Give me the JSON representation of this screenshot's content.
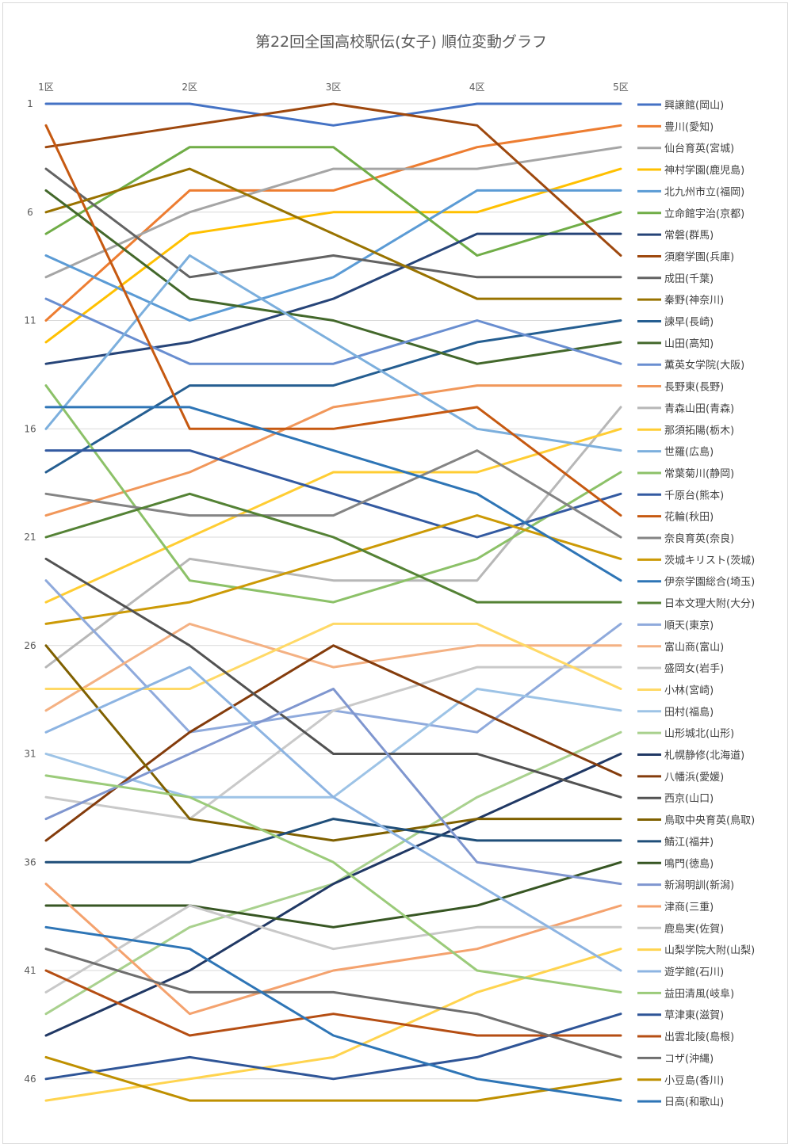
{
  "chart_data": {
    "type": "line",
    "title": "第22回全国高校駅伝(女子) 順位変動グラフ",
    "categories": [
      "1区",
      "2区",
      "3区",
      "4区",
      "5区"
    ],
    "y_ticks": [
      "1",
      "6",
      "11",
      "16",
      "21",
      "26",
      "31",
      "36",
      "41",
      "46"
    ],
    "ylim": [
      1,
      47
    ],
    "y_inverted": true,
    "grid": true,
    "legend_position": "right",
    "series": [
      {
        "name": "興譲館(岡山)",
        "color": "#4472C4",
        "values": [
          1,
          1,
          2,
          1,
          1
        ]
      },
      {
        "name": "豊川(愛知)",
        "color": "#ED7D31",
        "values": [
          11,
          5,
          5,
          3,
          2
        ]
      },
      {
        "name": "仙台育英(宮城)",
        "color": "#A5A5A5",
        "values": [
          9,
          6,
          4,
          4,
          3
        ]
      },
      {
        "name": "神村学園(鹿児島)",
        "color": "#FFC000",
        "values": [
          12,
          7,
          6,
          6,
          4
        ]
      },
      {
        "name": "北九州市立(福岡)",
        "color": "#5B9BD5",
        "values": [
          8,
          11,
          9,
          5,
          5
        ]
      },
      {
        "name": "立命館宇治(京都)",
        "color": "#70AD47",
        "values": [
          7,
          3,
          3,
          8,
          6
        ]
      },
      {
        "name": "常磐(群馬)",
        "color": "#264478",
        "values": [
          13,
          12,
          10,
          7,
          7
        ]
      },
      {
        "name": "須磨学園(兵庫)",
        "color": "#9E480E",
        "values": [
          3,
          2,
          1,
          2,
          8
        ]
      },
      {
        "name": "成田(千葉)",
        "color": "#636363",
        "values": [
          4,
          9,
          8,
          9,
          9
        ]
      },
      {
        "name": "秦野(神奈川)",
        "color": "#997300",
        "values": [
          6,
          4,
          7,
          10,
          10
        ]
      },
      {
        "name": "諫早(長崎)",
        "color": "#255E91",
        "values": [
          18,
          14,
          14,
          12,
          11
        ]
      },
      {
        "name": "山田(高知)",
        "color": "#43682B",
        "values": [
          5,
          10,
          11,
          13,
          12
        ]
      },
      {
        "name": "薫英女学院(大阪)",
        "color": "#698ED0",
        "values": [
          10,
          13,
          13,
          11,
          13
        ]
      },
      {
        "name": "長野東(長野)",
        "color": "#F1975A",
        "values": [
          20,
          18,
          15,
          14,
          14
        ]
      },
      {
        "name": "青森山田(青森)",
        "color": "#B7B7B7",
        "values": [
          27,
          22,
          23,
          23,
          15
        ]
      },
      {
        "name": "那須拓陽(栃木)",
        "color": "#FFCD33",
        "values": [
          24,
          21,
          18,
          18,
          16
        ]
      },
      {
        "name": "世羅(広島)",
        "color": "#7CAFDD",
        "values": [
          16,
          8,
          12,
          16,
          17
        ]
      },
      {
        "name": "常葉菊川(静岡)",
        "color": "#8CC168",
        "values": [
          14,
          23,
          24,
          22,
          18
        ]
      },
      {
        "name": "千原台(熊本)",
        "color": "#335AA1",
        "values": [
          17,
          17,
          19,
          21,
          19
        ]
      },
      {
        "name": "花輪(秋田)",
        "color": "#C65911",
        "values": [
          2,
          16,
          16,
          15,
          20
        ]
      },
      {
        "name": "奈良育英(奈良)",
        "color": "#848484",
        "values": [
          19,
          20,
          20,
          17,
          21
        ]
      },
      {
        "name": "茨城キリスト(茨城)",
        "color": "#CC9A06",
        "values": [
          25,
          24,
          22,
          20,
          22
        ]
      },
      {
        "name": "伊奈学園総合(埼玉)",
        "color": "#2E75B6",
        "values": [
          15,
          15,
          17,
          19,
          23
        ]
      },
      {
        "name": "日本文理大附(大分)",
        "color": "#548235",
        "values": [
          21,
          19,
          21,
          24,
          24
        ]
      },
      {
        "name": "順天(東京)",
        "color": "#8FAADC",
        "values": [
          23,
          30,
          29,
          30,
          25
        ]
      },
      {
        "name": "富山商(富山)",
        "color": "#F4B183",
        "values": [
          29,
          25,
          27,
          26,
          26
        ]
      },
      {
        "name": "盛岡女(岩手)",
        "color": "#C9C9C9",
        "values": [
          33,
          34,
          29,
          27,
          27
        ]
      },
      {
        "name": "小林(宮崎)",
        "color": "#FFD966",
        "values": [
          28,
          28,
          25,
          25,
          28
        ]
      },
      {
        "name": "田村(福島)",
        "color": "#9DC3E6",
        "values": [
          31,
          33,
          33,
          28,
          29
        ]
      },
      {
        "name": "山形城北(山形)",
        "color": "#A9D18E",
        "values": [
          43,
          39,
          37,
          33,
          30
        ]
      },
      {
        "name": "札幌静修(北海道)",
        "color": "#203864",
        "values": [
          44,
          41,
          37,
          34,
          31
        ]
      },
      {
        "name": "八幡浜(愛媛)",
        "color": "#843C0C",
        "values": [
          35,
          30,
          26,
          29,
          32
        ]
      },
      {
        "name": "西京(山口)",
        "color": "#525252",
        "values": [
          22,
          26,
          31,
          31,
          33
        ]
      },
      {
        "name": "鳥取中央育英(鳥取)",
        "color": "#7F6000",
        "values": [
          26,
          34,
          35,
          34,
          34
        ]
      },
      {
        "name": "鯖江(福井)",
        "color": "#1F4E79",
        "values": [
          36,
          36,
          34,
          35,
          35
        ]
      },
      {
        "name": "鳴門(徳島)",
        "color": "#375623",
        "values": [
          38,
          38,
          39,
          38,
          36
        ]
      },
      {
        "name": "新潟明訓(新潟)",
        "color": "#7F96CF",
        "values": [
          34,
          31,
          28,
          36,
          37
        ]
      },
      {
        "name": "津商(三重)",
        "color": "#F4A26E",
        "values": [
          37,
          43,
          41,
          40,
          38
        ]
      },
      {
        "name": "鹿島実(佐賀)",
        "color": "#C8C8C8",
        "values": [
          42,
          38,
          40,
          39,
          39
        ]
      },
      {
        "name": "山梨学院大附(山梨)",
        "color": "#FFD44F",
        "values": [
          47,
          46,
          45,
          42,
          40
        ]
      },
      {
        "name": "遊学館(石川)",
        "color": "#8DB4E2",
        "values": [
          30,
          27,
          33,
          37,
          41
        ]
      },
      {
        "name": "益田清風(岐阜)",
        "color": "#9BCB7A",
        "values": [
          32,
          33,
          36,
          41,
          42
        ]
      },
      {
        "name": "草津東(滋賀)",
        "color": "#2F5597",
        "values": [
          46,
          45,
          46,
          45,
          43
        ]
      },
      {
        "name": "出雲北陵(島根)",
        "color": "#B54E13",
        "values": [
          41,
          44,
          43,
          44,
          44
        ]
      },
      {
        "name": "コザ(沖縄)",
        "color": "#6E6E6E",
        "values": [
          40,
          42,
          42,
          43,
          45
        ]
      },
      {
        "name": "小豆島(香川)",
        "color": "#BF9000",
        "values": [
          45,
          47,
          47,
          47,
          46
        ]
      },
      {
        "name": "日高(和歌山)",
        "color": "#2E75B6",
        "values": [
          39,
          40,
          44,
          46,
          47
        ]
      }
    ]
  }
}
